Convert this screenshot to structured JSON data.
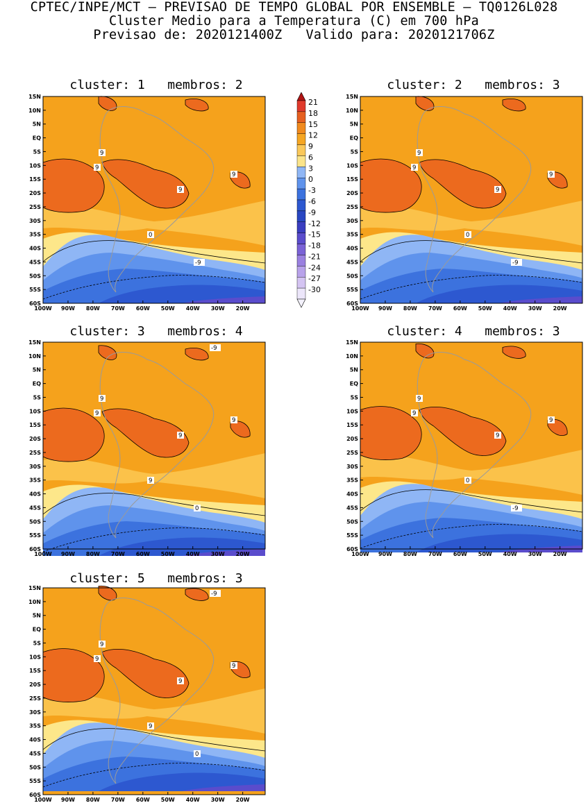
{
  "header": {
    "line1": "CPTEC/INPE/MCT – PREVISAO DE TEMPO GLOBAL POR ENSEMBLE – TQ0126L028",
    "line2": "Cluster Medio para a Temperatura (C) em 700 hPa",
    "line3": "Previsao de: 2020121400Z   Valido para: 2020121706Z"
  },
  "lat_ticks": [
    "15N",
    "10N",
    "5N",
    "EQ",
    "5S",
    "10S",
    "15S",
    "20S",
    "25S",
    "30S",
    "35S",
    "40S",
    "45S",
    "50S",
    "55S",
    "60S"
  ],
  "lon_ticks": [
    "100W",
    "90W",
    "80W",
    "70W",
    "60W",
    "50W",
    "40W",
    "30W",
    "20W"
  ],
  "colorbar": {
    "labels": [
      "21",
      "18",
      "15",
      "12",
      "9",
      "6",
      "3",
      "0",
      "-3",
      "-6",
      "-9",
      "-12",
      "-15",
      "-18",
      "-21",
      "-24",
      "-27",
      "-30"
    ],
    "colors": [
      "#e03a2c",
      "#e66020",
      "#f08a1e",
      "#f5a623",
      "#fac85a",
      "#fbe48a",
      "#8fb6f5",
      "#5f93ec",
      "#3c72de",
      "#2d58d0",
      "#2947c2",
      "#3a3ec0",
      "#5a4ccc",
      "#7a62d6",
      "#9a80e0",
      "#b8a2ea",
      "#d4c4f2",
      "#ece6fa"
    ],
    "top_color": "#b01414",
    "bottom_color": "#f4f2fc"
  },
  "panels": [
    {
      "id": "p1",
      "title": "cluster: 1   membros: 2",
      "labels": [
        "9",
        "9",
        "9",
        "9",
        "0",
        "-9"
      ]
    },
    {
      "id": "p2",
      "title": "cluster: 2   membros: 3",
      "labels": [
        "9",
        "9",
        "9",
        "9",
        "0",
        "-9"
      ]
    },
    {
      "id": "p3",
      "title": "cluster: 3   membros: 4",
      "labels": [
        "9",
        "9",
        "9",
        "9",
        "9",
        "0",
        "-9"
      ]
    },
    {
      "id": "p4",
      "title": "cluster: 4   membros: 3",
      "labels": [
        "9",
        "9",
        "9",
        "9",
        "0",
        "-9"
      ]
    },
    {
      "id": "p5",
      "title": "cluster: 5   membros: 3",
      "labels": [
        "9",
        "9",
        "9",
        "9",
        "9",
        "0",
        "-9"
      ]
    }
  ],
  "field_colors": {
    "orange": "#f5a21c",
    "dark_orange": "#ec6a1e",
    "light_orange": "#fbc24a",
    "pale_yellow": "#fde78a",
    "light_blue": "#8fb6f5",
    "mid_blue": "#5f93ec",
    "blue": "#3c72de",
    "dark_blue": "#2d58d0",
    "purple": "#5a4ccc"
  }
}
